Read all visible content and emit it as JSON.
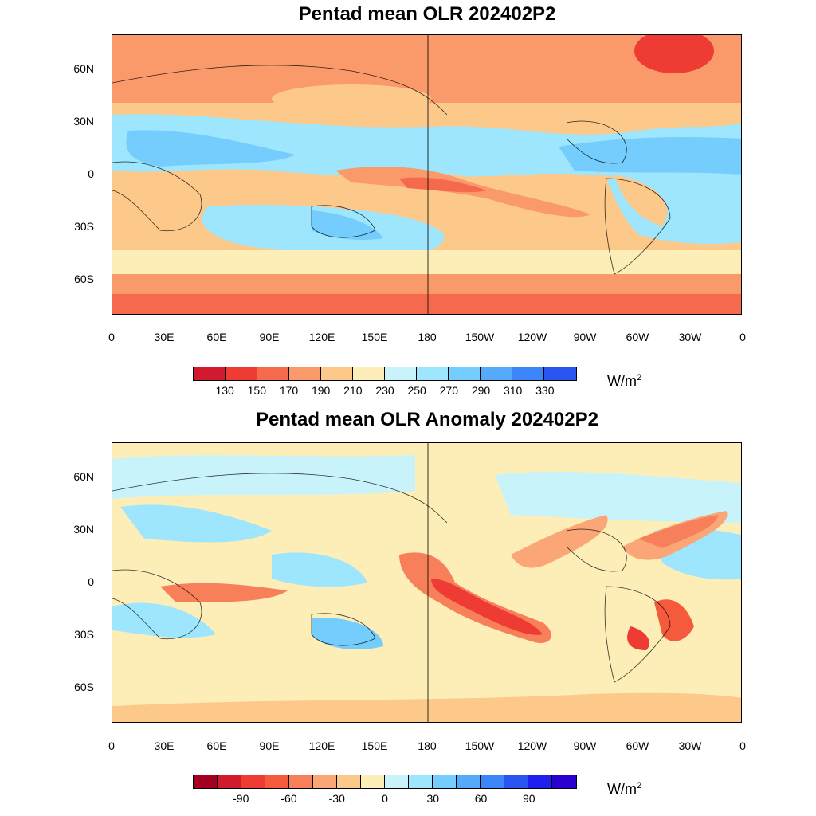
{
  "panels": [
    {
      "title": "Pentad mean OLR 202402P2",
      "lat_labels": [
        "60N",
        "30N",
        "0",
        "30S",
        "60S"
      ],
      "lon_labels": [
        "0",
        "30E",
        "60E",
        "90E",
        "120E",
        "150E",
        "180",
        "150W",
        "120W",
        "90W",
        "60W",
        "30W",
        "0"
      ],
      "colorbar": {
        "colors": [
          "#d11a2e",
          "#ee3b33",
          "#f56a4d",
          "#fa9a6a",
          "#fdc98b",
          "#fdeeb8",
          "#c9f3fb",
          "#9de6fd",
          "#74cdfd",
          "#56aafc",
          "#3d86f9",
          "#2a55f0"
        ],
        "labels": [
          "130",
          "150",
          "170",
          "190",
          "210",
          "230",
          "250",
          "270",
          "290",
          "310",
          "330"
        ],
        "units": "W/m",
        "units_sup": "2"
      }
    },
    {
      "title": "Pentad mean OLR Anomaly 202402P2",
      "lat_labels": [
        "60N",
        "30N",
        "0",
        "30S",
        "60S"
      ],
      "lon_labels": [
        "0",
        "30E",
        "60E",
        "90E",
        "120E",
        "150E",
        "180",
        "150W",
        "120W",
        "90W",
        "60W",
        "30W",
        "0"
      ],
      "colorbar": {
        "colors": [
          "#a50021",
          "#d11a2e",
          "#ee3b33",
          "#f55a3d",
          "#f7805a",
          "#fba676",
          "#fdc98b",
          "#fdeeb8",
          "#c9f3fb",
          "#9de6fd",
          "#74cdfd",
          "#56aafc",
          "#3d86f9",
          "#2a55f0",
          "#1f1ff0",
          "#2a00d0"
        ],
        "labels": [
          "-90",
          "-60",
          "-30",
          "0",
          "30",
          "60",
          "90"
        ],
        "units": "W/m",
        "units_sup": "2"
      }
    }
  ]
}
